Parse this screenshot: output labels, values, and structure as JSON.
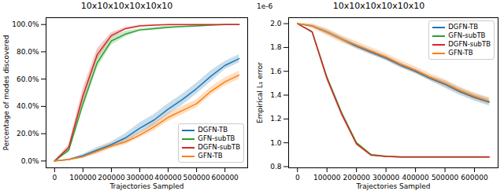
{
  "chart_data": [
    {
      "type": "line",
      "title": "10x10x10x10x10x10",
      "x_label": "Trajectories Sampled",
      "y_label": "Percentage of modes discovered",
      "x": [
        0,
        50000,
        100000,
        150000,
        200000,
        250000,
        300000,
        350000,
        400000,
        450000,
        500000,
        550000,
        600000,
        650000
      ],
      "xlim": [
        -30000,
        680000
      ],
      "xticks": [
        0,
        100000,
        200000,
        300000,
        400000,
        500000,
        600000
      ],
      "ylim": [
        -5,
        105
      ],
      "yticks": [
        {
          "value": 0,
          "label": "0.0%"
        },
        {
          "value": 20,
          "label": "20.0%"
        },
        {
          "value": 40,
          "label": "40.0%"
        },
        {
          "value": 60,
          "label": "60.0%"
        },
        {
          "value": 80,
          "label": "80.0%"
        },
        {
          "value": 100,
          "label": "100.0%"
        }
      ],
      "grid": false,
      "legend": "lower right",
      "series": [
        {
          "name": "DGFN-TB",
          "color": "#1f77b4",
          "values": [
            0,
            1,
            4,
            8,
            12,
            17,
            24,
            30,
            38,
            45,
            53,
            62,
            70,
            75
          ],
          "lower": [
            0,
            0.5,
            3,
            6,
            10,
            14,
            20,
            26,
            34,
            41,
            49,
            58,
            67,
            72
          ],
          "upper": [
            0,
            1.5,
            5,
            10,
            14,
            20,
            28,
            34,
            42,
            49,
            57,
            66,
            73,
            78
          ]
        },
        {
          "name": "GFN-subTB",
          "color": "#2ca02c",
          "values": [
            0,
            8,
            42,
            72,
            88,
            93,
            96,
            97,
            98,
            98.5,
            99,
            99.5,
            100,
            100
          ],
          "lower": [
            0,
            6,
            38,
            68,
            85,
            91,
            95,
            96,
            97,
            98,
            98.5,
            99,
            99.5,
            99.5
          ],
          "upper": [
            0,
            10,
            46,
            76,
            91,
            95,
            97,
            98,
            99,
            99,
            99.5,
            100,
            100,
            100
          ]
        },
        {
          "name": "DGFN-subTB",
          "color": "#d62728",
          "values": [
            0,
            10,
            48,
            78,
            92,
            97,
            99,
            99.5,
            100,
            100,
            100,
            100,
            100,
            100
          ],
          "lower": [
            0,
            8,
            43,
            74,
            90,
            96,
            98.5,
            99,
            99.5,
            100,
            100,
            100,
            100,
            100
          ],
          "upper": [
            0,
            12,
            53,
            82,
            94,
            98,
            99.5,
            100,
            100,
            100,
            100,
            100,
            100,
            100
          ]
        },
        {
          "name": "GFN-TB",
          "color": "#ff7f0e",
          "values": [
            0,
            1,
            3,
            7,
            11,
            14,
            19,
            25,
            32,
            37,
            42,
            51,
            58,
            63
          ],
          "lower": [
            0,
            0.5,
            2,
            5,
            9,
            12,
            17,
            22,
            29,
            34,
            39,
            48,
            55,
            60
          ],
          "upper": [
            0,
            1.5,
            4,
            9,
            13,
            16,
            21,
            28,
            35,
            40,
            45,
            54,
            61,
            66
          ]
        }
      ]
    },
    {
      "type": "line",
      "title": "10x10x10x10x10x10",
      "x_label": "Trajectories Sampled",
      "y_label": "Empirical L₁ error",
      "annotations": [
        "1e-6"
      ],
      "x": [
        0,
        50000,
        100000,
        150000,
        200000,
        250000,
        300000,
        350000,
        400000,
        450000,
        500000,
        550000,
        600000,
        650000
      ],
      "xlim": [
        -30000,
        680000
      ],
      "xticks": [
        0,
        100000,
        200000,
        300000,
        400000,
        500000,
        600000
      ],
      "ylim": [
        7.9e-07,
        2.05e-06
      ],
      "yticks": [
        {
          "value": 8e-07,
          "label": "0.8"
        },
        {
          "value": 1e-06,
          "label": "1.0"
        },
        {
          "value": 1.2e-06,
          "label": "1.2"
        },
        {
          "value": 1.4e-06,
          "label": "1.4"
        },
        {
          "value": 1.6e-06,
          "label": "1.6"
        },
        {
          "value": 1.8e-06,
          "label": "1.8"
        },
        {
          "value": 2e-06,
          "label": "2.0"
        }
      ],
      "grid": false,
      "legend": "upper right",
      "series": [
        {
          "name": "DGFN-TB",
          "color": "#1f77b4",
          "values": [
            2e-06,
            1.98e-06,
            1.93e-06,
            1.87e-06,
            1.81e-06,
            1.76e-06,
            1.71e-06,
            1.65e-06,
            1.6e-06,
            1.54e-06,
            1.49e-06,
            1.43e-06,
            1.38e-06,
            1.34e-06
          ],
          "lower": [
            2e-06,
            1.97e-06,
            1.91e-06,
            1.85e-06,
            1.79e-06,
            1.74e-06,
            1.69e-06,
            1.63e-06,
            1.58e-06,
            1.52e-06,
            1.46e-06,
            1.4e-06,
            1.35e-06,
            1.31e-06
          ],
          "upper": [
            2e-06,
            1.99e-06,
            1.95e-06,
            1.89e-06,
            1.83e-06,
            1.78e-06,
            1.73e-06,
            1.67e-06,
            1.62e-06,
            1.56e-06,
            1.52e-06,
            1.46e-06,
            1.41e-06,
            1.37e-06
          ]
        },
        {
          "name": "GFN-subTB",
          "color": "#2ca02c",
          "values": [
            2e-06,
            1.93e-06,
            1.55e-06,
            1.25e-06,
            1e-06,
            9e-07,
            8.85e-07,
            8.8e-07,
            8.8e-07,
            8.8e-07,
            8.8e-07,
            8.8e-07,
            8.8e-07,
            8.8e-07
          ],
          "lower": [
            2e-06,
            1.92e-06,
            1.53e-06,
            1.23e-06,
            9.9e-07,
            8.95e-07,
            8.8e-07,
            8.75e-07,
            8.75e-07,
            8.75e-07,
            8.75e-07,
            8.75e-07,
            8.75e-07,
            8.75e-07
          ],
          "upper": [
            2e-06,
            1.94e-06,
            1.57e-06,
            1.27e-06,
            1.01e-06,
            9.05e-07,
            8.9e-07,
            8.85e-07,
            8.85e-07,
            8.85e-07,
            8.85e-07,
            8.85e-07,
            8.85e-07,
            8.85e-07
          ]
        },
        {
          "name": "DGFN-subTB",
          "color": "#d62728",
          "values": [
            2e-06,
            1.93e-06,
            1.54e-06,
            1.24e-06,
            9.9e-07,
            8.95e-07,
            8.85e-07,
            8.8e-07,
            8.8e-07,
            8.8e-07,
            8.8e-07,
            8.8e-07,
            8.8e-07,
            8.8e-07
          ],
          "lower": [
            2e-06,
            1.92e-06,
            1.52e-06,
            1.22e-06,
            9.8e-07,
            8.9e-07,
            8.8e-07,
            8.75e-07,
            8.75e-07,
            8.75e-07,
            8.75e-07,
            8.75e-07,
            8.75e-07,
            8.75e-07
          ],
          "upper": [
            2e-06,
            1.94e-06,
            1.56e-06,
            1.26e-06,
            1e-06,
            9e-07,
            8.9e-07,
            8.85e-07,
            8.85e-07,
            8.85e-07,
            8.85e-07,
            8.85e-07,
            8.85e-07,
            8.85e-07
          ]
        },
        {
          "name": "GFN-TB",
          "color": "#ff7f0e",
          "values": [
            2e-06,
            1.98e-06,
            1.93e-06,
            1.87e-06,
            1.82e-06,
            1.77e-06,
            1.72e-06,
            1.66e-06,
            1.61e-06,
            1.55e-06,
            1.5e-06,
            1.44e-06,
            1.39e-06,
            1.35e-06
          ],
          "lower": [
            2e-06,
            1.96e-06,
            1.9e-06,
            1.84e-06,
            1.79e-06,
            1.74e-06,
            1.69e-06,
            1.63e-06,
            1.58e-06,
            1.52e-06,
            1.47e-06,
            1.41e-06,
            1.36e-06,
            1.32e-06
          ],
          "upper": [
            2e-06,
            2e-06,
            1.96e-06,
            1.9e-06,
            1.85e-06,
            1.8e-06,
            1.75e-06,
            1.69e-06,
            1.64e-06,
            1.58e-06,
            1.53e-06,
            1.47e-06,
            1.42e-06,
            1.38e-06
          ]
        }
      ]
    }
  ]
}
